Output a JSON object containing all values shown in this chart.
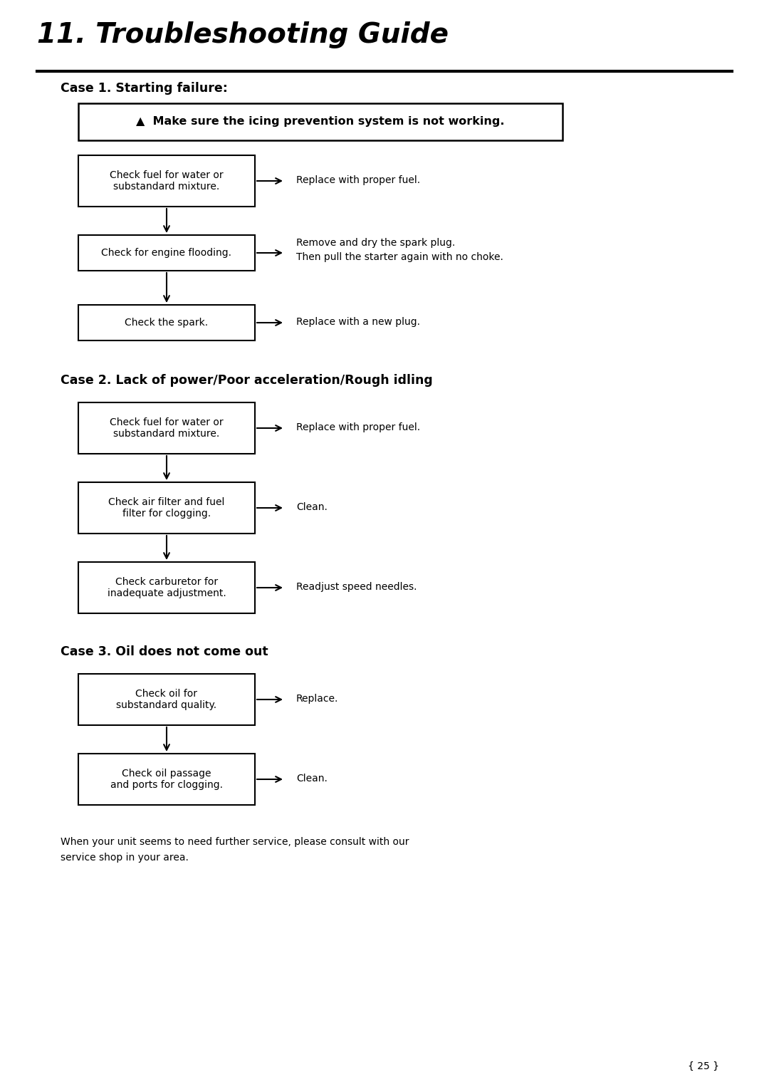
{
  "title": "11. Troubleshooting Guide",
  "page_number": "{ 25 }",
  "background_color": "#ffffff",
  "text_color": "#000000",
  "case1_header": "Case 1. Starting failure:",
  "case2_header": "Case 2. Lack of power/Poor acceleration/Rough idling",
  "case3_header": "Case 3. Oil does not come out",
  "warning_box_text": "▲  Make sure the icing prevention system is not working.",
  "case1_boxes": [
    "Check fuel for water or\nsubstandard mixture.",
    "Check for engine flooding.",
    "Check the spark."
  ],
  "case1_actions": [
    "Replace with proper fuel.",
    "Remove and dry the spark plug.\nThen pull the starter again with no choke.",
    "Replace with a new plug."
  ],
  "case2_boxes": [
    "Check fuel for water or\nsubstandard mixture.",
    "Check air filter and fuel\nfilter for clogging.",
    "Check carburetor for\ninadequate adjustment."
  ],
  "case2_actions": [
    "Replace with proper fuel.",
    "Clean.",
    "Readjust speed needles."
  ],
  "case3_boxes": [
    "Check oil for\nsubstandard quality.",
    "Check oil passage\nand ports for clogging."
  ],
  "case3_actions": [
    "Replace.",
    "Clean."
  ],
  "footer_text": "When your unit seems to need further service, please consult with our\nservice shop in your area."
}
